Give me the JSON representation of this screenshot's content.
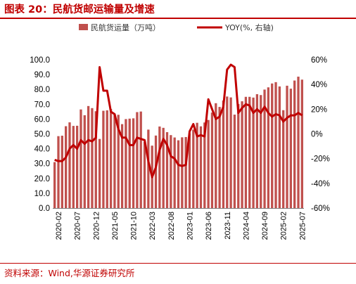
{
  "figure": {
    "title": "图表 20：民航货邮运输量及增速",
    "source": "资料来源：Wind,华源证券研究所"
  },
  "chart_data": {
    "type": "bar+line",
    "x": [
      "2020-01",
      "2020-02",
      "2020-03",
      "2020-04",
      "2020-05",
      "2020-06",
      "2020-07",
      "2020-08",
      "2020-09",
      "2020-10",
      "2020-11",
      "2020-12",
      "2021-01",
      "2021-02",
      "2021-03",
      "2021-04",
      "2021-05",
      "2021-06",
      "2021-07",
      "2021-08",
      "2021-09",
      "2021-10",
      "2021-11",
      "2021-12",
      "2022-01",
      "2022-02",
      "2022-03",
      "2022-04",
      "2022-05",
      "2022-06",
      "2022-07",
      "2022-08",
      "2022-09",
      "2022-10",
      "2022-11",
      "2022-12",
      "2023-01",
      "2023-02",
      "2023-03",
      "2023-04",
      "2023-05",
      "2023-06",
      "2023-07",
      "2023-08",
      "2023-09",
      "2023-10",
      "2023-11",
      "2023-12",
      "2024-01",
      "2024-02",
      "2024-03",
      "2024-04",
      "2024-05",
      "2024-06",
      "2024-07",
      "2024-08",
      "2024-09",
      "2024-10",
      "2024-11",
      "2024-12",
      "2025-01",
      "2025-02",
      "2025-03",
      "2025-04",
      "2025-05",
      "2025-06",
      "2025-07"
    ],
    "x_tick_labels": [
      "2020-02",
      "2020-07",
      "2020-12",
      "2021-05",
      "2021-10",
      "2022-03",
      "2022-08",
      "2023-01",
      "2023-06",
      "2023-11",
      "2024-04",
      "2024-09",
      "2025-02",
      "2025-07"
    ],
    "series": [
      {
        "name": "民航货运量（万吨）",
        "type": "bar",
        "axis": "left",
        "color": "#c0504d",
        "values": [
          31.0,
          48.5,
          48.8,
          55.2,
          57.8,
          55.4,
          55.5,
          66.5,
          62.6,
          68.8,
          67.4,
          65.3,
          46.6,
          65.6,
          65.9,
          66.8,
          63.4,
          62.9,
          56.6,
          60.0,
          60.3,
          60.5,
          64.7,
          65.1,
          44.6,
          52.9,
          42.1,
          48.9,
          55.0,
          54.1,
          51.2,
          49.2,
          47.6,
          45.7,
          47.7,
          47.9,
          50.4,
          52.9,
          57.5,
          55.1,
          57.7,
          59.4,
          64.4,
          70.7,
          68.2,
          72.5,
          75.2,
          74.6,
          63.0,
          70.2,
          72.0,
          75.0,
          75.0,
          74.5,
          76.8,
          76.2,
          79.9,
          81.4,
          84.0,
          84.9,
          82.0,
          66.0,
          82.5,
          80.5,
          86.0,
          88.6,
          86.6
        ]
      },
      {
        "name": "YOY(%, 右轴)",
        "type": "line",
        "axis": "right",
        "color": "#c00000",
        "values": [
          -21,
          -22,
          -22,
          -19,
          -12,
          -9,
          -12,
          -5,
          -8,
          -5,
          -6,
          -3,
          54,
          35,
          35,
          18,
          16,
          4,
          -3,
          -3,
          -9,
          -9,
          -3,
          -4,
          -5,
          -22,
          -35,
          -27,
          -13,
          -4,
          -9,
          -18,
          -20,
          -25,
          -26,
          -25,
          2,
          8,
          -2,
          -1,
          -2,
          28,
          20,
          12,
          14,
          22,
          52,
          56,
          54,
          17,
          21,
          24,
          23,
          17,
          20,
          17,
          22,
          17,
          14,
          16,
          15,
          10,
          13,
          15,
          15,
          17,
          15
        ]
      }
    ],
    "left_axis": {
      "min": 0,
      "max": 100,
      "ticks": [
        "0.0",
        "10.0",
        "20.0",
        "30.0",
        "40.0",
        "50.0",
        "60.0",
        "70.0",
        "80.0",
        "90.0",
        "100.0"
      ]
    },
    "right_axis": {
      "min": -60,
      "max": 60,
      "ticks": [
        "-60%",
        "-40%",
        "-20%",
        "0%",
        "20%",
        "40%",
        "60%"
      ]
    },
    "legend": {
      "position": "top",
      "items": [
        "民航货运量（万吨）",
        "YOY(%, 右轴)"
      ]
    },
    "grid": false
  }
}
